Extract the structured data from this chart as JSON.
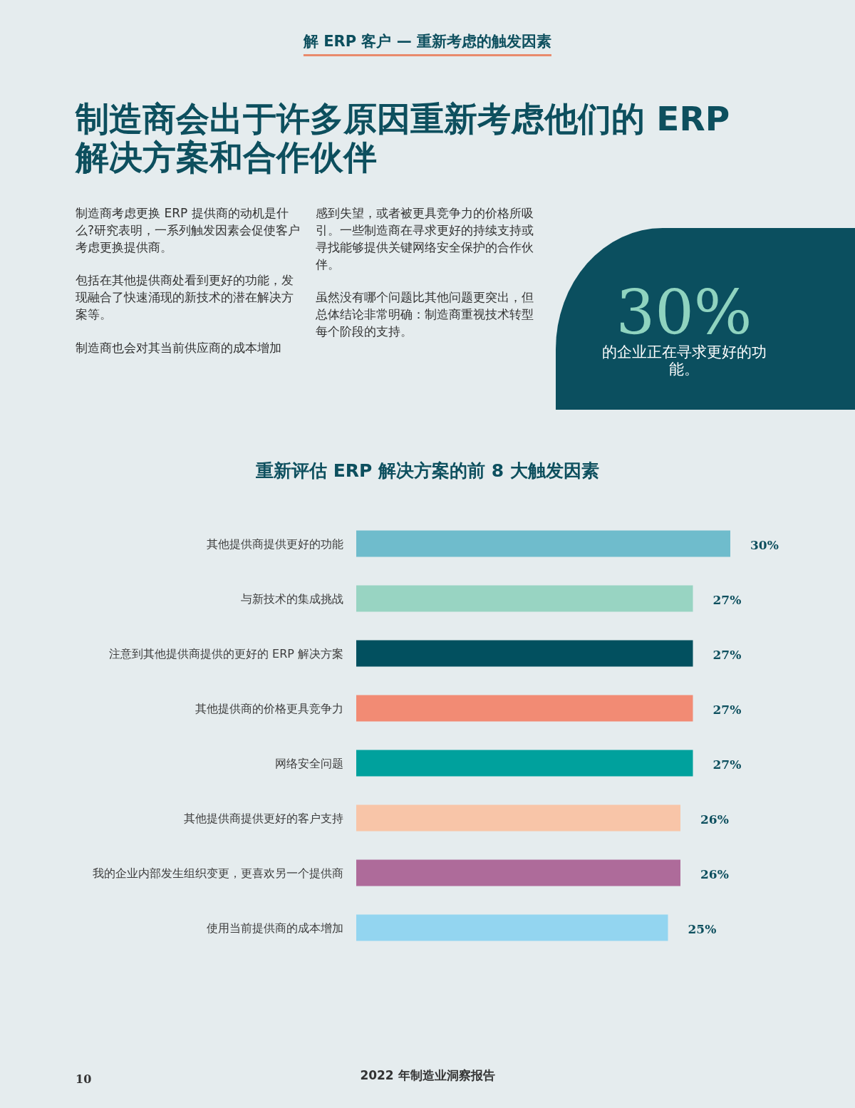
{
  "chart_data": {
    "type": "bar",
    "orientation": "horizontal",
    "title": "重新评估 ERP 解决方案的前 8 大触发因素",
    "categories": [
      "其他提供商提供更好的功能",
      "与新技术的集成挑战",
      "注意到其他提供商提供的更好的 ERP 解决方案",
      "其他提供商的价格更具竞争力",
      "网络安全问题",
      "其他提供商提供更好的客户支持",
      "我的企业内部发生组织变更，更喜欢另一个提供商",
      "使用当前提供商的成本增加"
    ],
    "values": [
      30,
      27,
      27,
      27,
      27,
      26,
      26,
      25
    ],
    "value_labels": [
      "30%",
      "27%",
      "27%",
      "27%",
      "27%",
      "26%",
      "26%",
      "25%"
    ],
    "colors": [
      "#6fbccc",
      "#98d4c2",
      "#02505f",
      "#f28b74",
      "#00a19d",
      "#f8c5a8",
      "#ae6b9a",
      "#93d5f0"
    ],
    "annotations": [
      "解 ERP 客户 — 重新考虑的触发因素",
      "制造商会出于许多原因重新考虑他们的 ERP 解决方案和合作伙伴",
      "制造商考虑更换 ERP 提供商的动机是什么?研究表明，一系列触发因素会促使客户考虑更换提供商。",
      "包括在其他提供商处看到更好的功能，发现融合了快速涌现的新技术的潜在解决方案等。",
      "制造商也会对其当前供应商的成本增加",
      "感到失望，或者被更具竞争力的价格所吸引。一些制造商在寻求更好的持续支持或寻找能够提供关键网络安全保护的合作伙伴。",
      "虽然没有哪个问题比其他问题更突出，但总体结论非常明确：制造商重视技术转型每个阶段的支持。",
      "30%",
      "的企业正在寻求更好的功能。",
      "10",
      "2022 年制造业洞察报告"
    ]
  }
}
